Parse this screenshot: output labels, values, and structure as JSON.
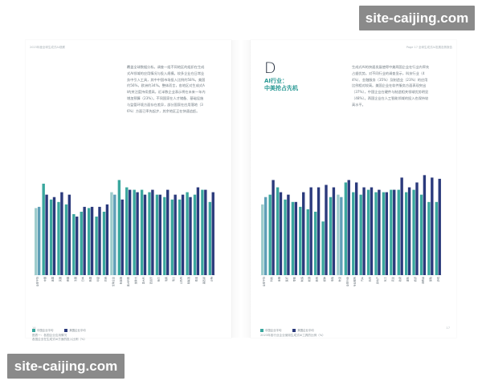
{
  "watermarks": {
    "top": "site-caijing.com",
    "bottom": "site-caijing.com"
  },
  "left_page": {
    "running_head": "2023年度全球生成式AI观察",
    "body_text": "覆盖全球数据分析。调查一组不同地区的组织在生成式AI领域的应用情况与投入规模。较多企业在日常业务中引入工具，其中中国市场投入比例约58%，美国约56%，欧洲约34%。整体而言，各地区对生成式AI的关注度持续提高，近半数企业表示将在未来一年内增加预算（23%）。不同国家在人才储备、基础设施与监管环境方面存在差异，部分国家在应用落地（36%）方面已率先起步，其余地区正在快速追赶。",
    "page_number": "16",
    "legend": [
      {
        "label": "中国企业平均",
        "color": "#3aa79e"
      },
      {
        "label": "美国企业平均",
        "color": "#2b3a7c"
      }
    ],
    "caption_lines": [
      "图表一：各国企业应用情况",
      "各国企业在生成式AI方面的投入比例（%）"
    ]
  },
  "right_page": {
    "running_head": "Page 17 全球生成式AI发展态势报告",
    "section_letter": "D",
    "section_title": "AI行业：\n中美抢占先机",
    "body_text": "生成式AI的快速发展使得中美两国企业在行业内率先占据优势。对不同行业的调查显示，科技行业（44%）、金融服务（35%）及制造业（23%）的应用比例相对较高。美国企业在软件服务方面表现突出（37%），中国企业在硬件与制造相关领域优势明显（48%）。两国企业在人工智能领域的投入也保持较高水平。",
    "page_number": "17",
    "legend": [
      {
        "label": "中国企业平均",
        "color": "#3aa79e"
      },
      {
        "label": "美国企业平均",
        "color": "#2b3a7c"
      }
    ],
    "caption_lines": [
      "2023年各行业企业使用生成式AI工具的比例（%）"
    ]
  },
  "chart_data": [
    {
      "type": "bar",
      "title": "",
      "xlabel": "",
      "ylabel": "",
      "ylim": [
        0,
        100
      ],
      "categories": [
        "全球平均",
        "中国",
        "美国",
        "英国",
        "德国",
        "法国",
        "日本",
        "韩国",
        "印度",
        "巴西",
        "全球企业",
        "新加坡",
        "澳大利亚",
        "加拿大",
        "意大利",
        "西班牙",
        "荷兰",
        "瑞典",
        "瑞士",
        "以色列",
        "阿联酋",
        "南非",
        "墨西哥",
        "沙特"
      ],
      "series": [
        {
          "name": "中国企业平均",
          "values": [
            55,
            75,
            62,
            60,
            58,
            50,
            52,
            55,
            48,
            52,
            68,
            78,
            72,
            70,
            70,
            68,
            66,
            64,
            62,
            62,
            68,
            66,
            70,
            60
          ]
        },
        {
          "name": "美国企业平均",
          "values": [
            56,
            66,
            64,
            68,
            66,
            48,
            56,
            56,
            56,
            58,
            66,
            62,
            70,
            68,
            66,
            70,
            66,
            70,
            66,
            66,
            64,
            72,
            70,
            68
          ]
        }
      ],
      "highlight_series_colors": [
        "#9ccbcb",
        "#5f9fb7"
      ]
    },
    {
      "type": "bar",
      "title": "",
      "xlabel": "",
      "ylabel": "",
      "ylim": [
        0,
        100
      ],
      "categories": [
        "全球平均",
        "科技",
        "金融",
        "医疗",
        "零售",
        "制造",
        "能源",
        "教育",
        "媒体",
        "电信",
        "物流",
        "全球行业",
        "专业服务",
        "汽车",
        "航空",
        "房地产",
        "化工",
        "农业",
        "政府",
        "建筑",
        "旅游",
        "消费品",
        "保险",
        "游戏"
      ],
      "series": [
        {
          "name": "中国企业平均",
          "values": [
            58,
            66,
            72,
            62,
            60,
            56,
            54,
            52,
            44,
            64,
            66,
            76,
            68,
            66,
            70,
            68,
            68,
            70,
            70,
            68,
            70,
            66,
            60,
            60
          ]
        },
        {
          "name": "美国企业平均",
          "values": [
            64,
            78,
            68,
            66,
            60,
            68,
            72,
            72,
            74,
            72,
            64,
            78,
            76,
            72,
            72,
            70,
            68,
            70,
            80,
            72,
            76,
            82,
            80,
            79
          ]
        }
      ],
      "highlight_series_colors": [
        "#9ccbcb",
        "#5f9fb7"
      ]
    }
  ]
}
